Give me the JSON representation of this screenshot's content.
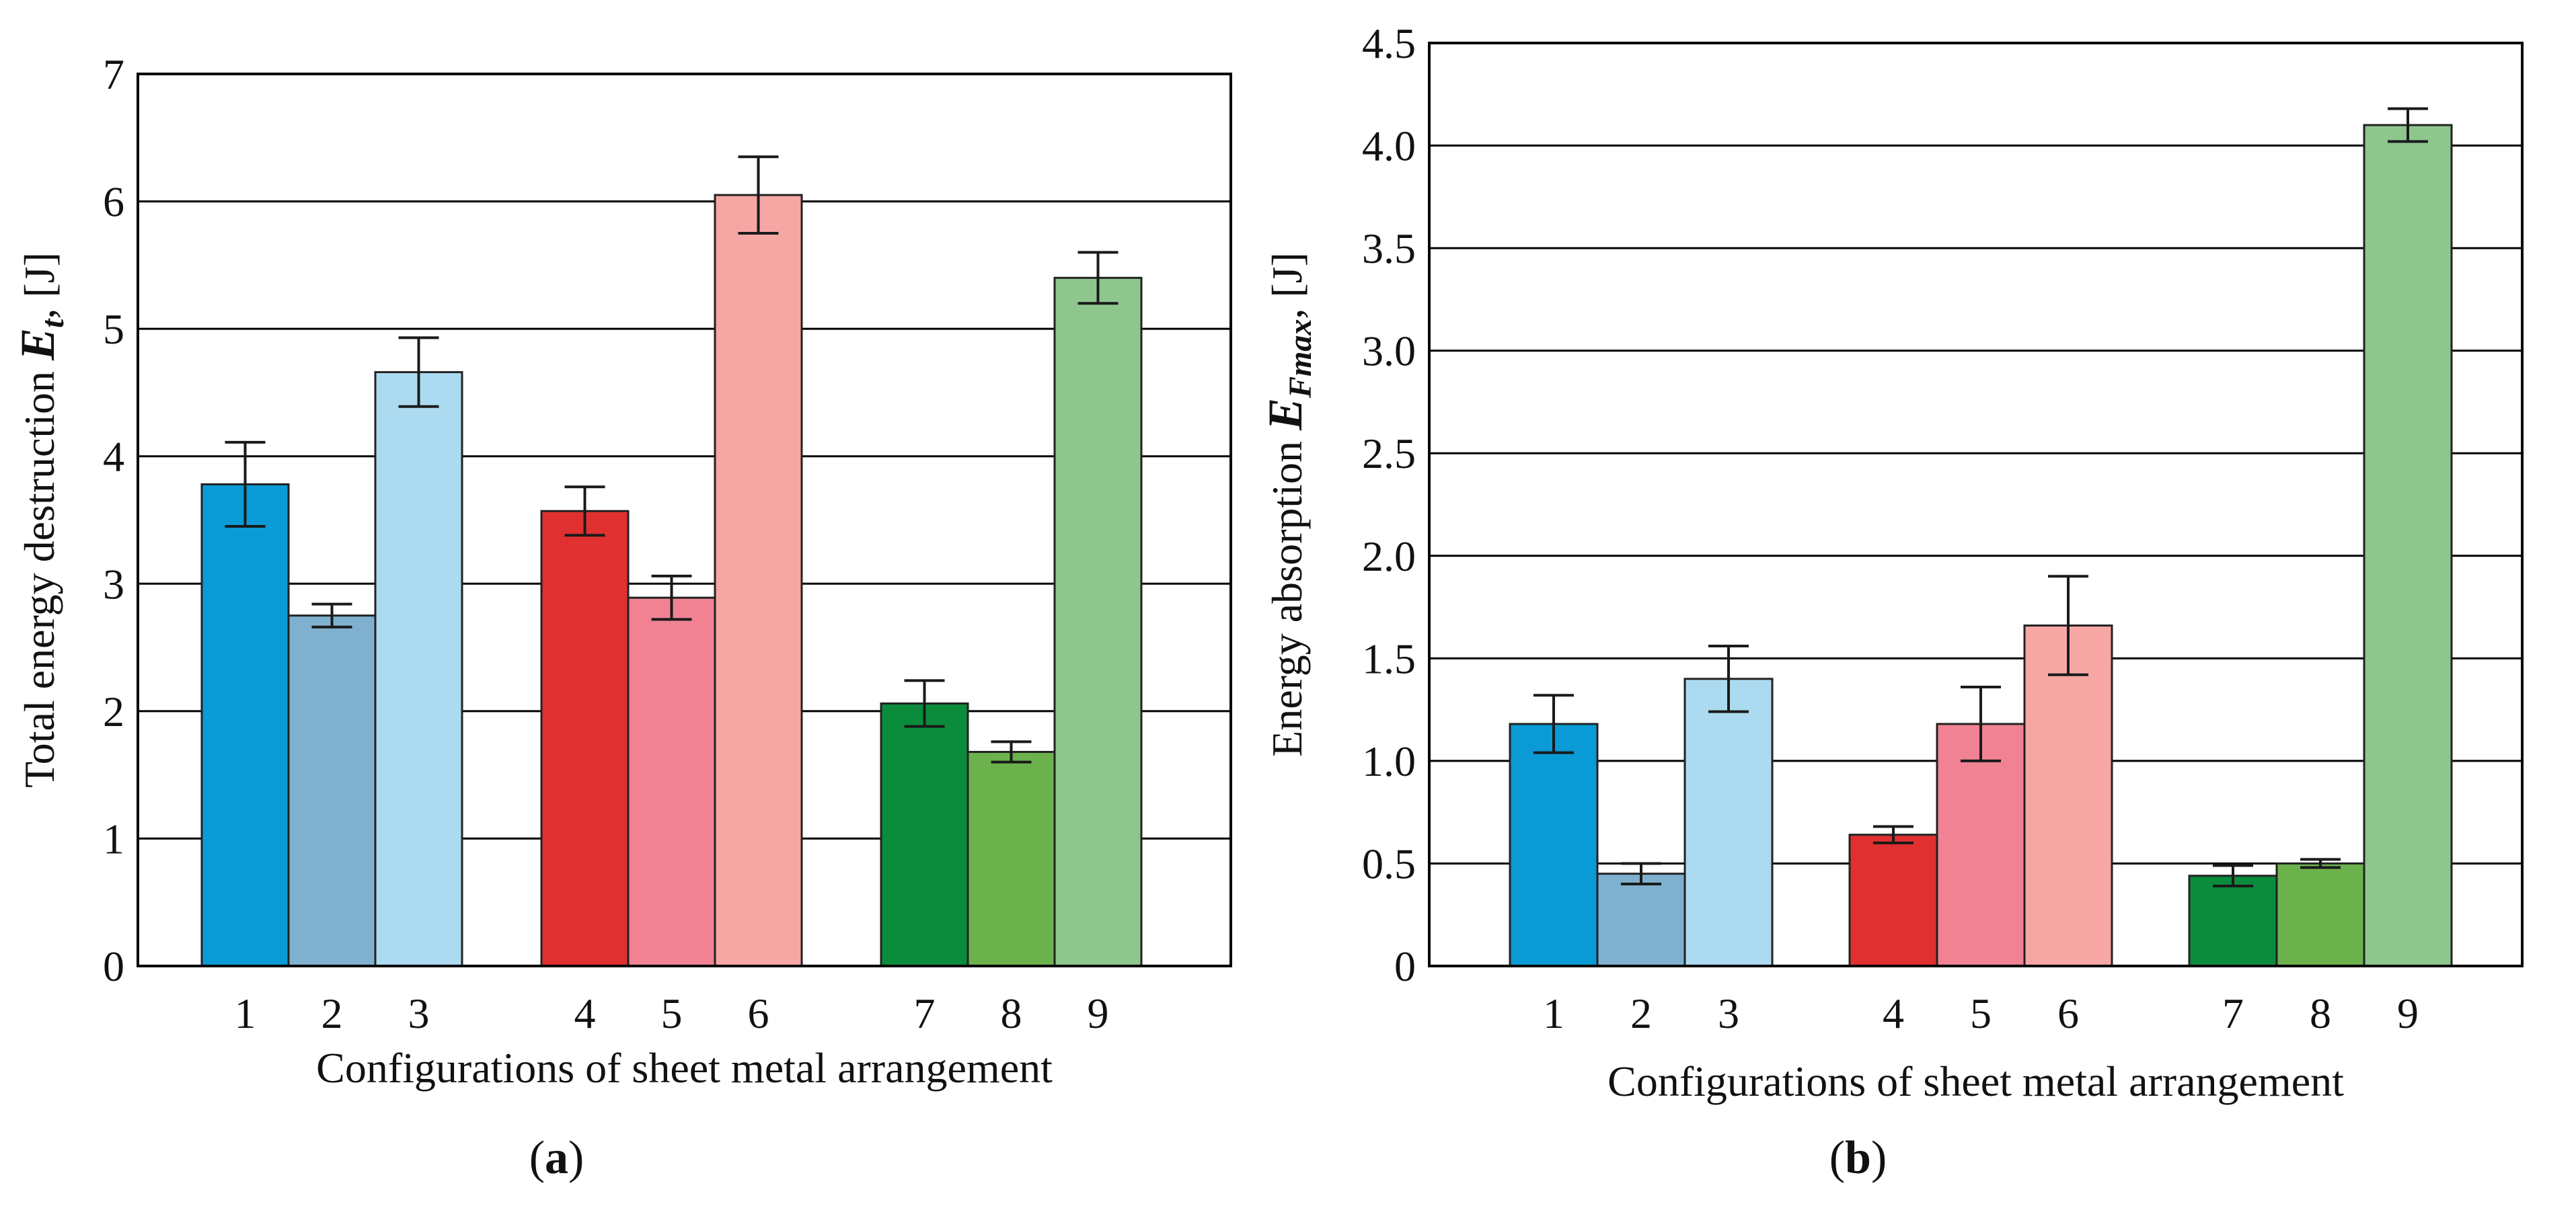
{
  "chart_data": [
    {
      "type": "bar",
      "panel_label": "a",
      "title": "",
      "ylabel": "Total energy destruction",
      "ylabel_symbol": "E",
      "ylabel_subscript": "t",
      "ylabel_unit": ", [J]",
      "xlabel": "Configurations of sheet metal arrangement",
      "ylim": [
        0,
        7
      ],
      "yticks": [
        "0",
        "1",
        "2",
        "3",
        "4",
        "5",
        "6",
        "7"
      ],
      "grid": true,
      "groups": [
        [
          "1",
          "2",
          "3"
        ],
        [
          "4",
          "5",
          "6"
        ],
        [
          "7",
          "8",
          "9"
        ]
      ],
      "categories": [
        "1",
        "2",
        "3",
        "4",
        "5",
        "6",
        "7",
        "8",
        "9"
      ],
      "values": [
        3.78,
        2.75,
        4.66,
        3.57,
        2.89,
        6.05,
        2.06,
        1.68,
        5.4
      ],
      "errors": [
        0.33,
        0.09,
        0.27,
        0.19,
        0.17,
        0.3,
        0.18,
        0.08,
        0.2
      ],
      "colors": [
        "#0a9ad6",
        "#7fb0cf",
        "#acdaf0",
        "#e03030",
        "#f08294",
        "#f6a7a4",
        "#0a8c3c",
        "#6cb24c",
        "#8fc68e"
      ]
    },
    {
      "type": "bar",
      "panel_label": "b",
      "title": "",
      "ylabel": "Energy absorption",
      "ylabel_symbol": "E",
      "ylabel_subscript": "Fmax",
      "ylabel_unit": ", [J]",
      "xlabel": "Configurations of sheet metal arrangement",
      "ylim": [
        0,
        4.5
      ],
      "yticks": [
        "0",
        "0.5",
        "1.0",
        "1.5",
        "2.0",
        "2.5",
        "3.0",
        "3.5",
        "4.0",
        "4.5"
      ],
      "grid": true,
      "groups": [
        [
          "1",
          "2",
          "3"
        ],
        [
          "4",
          "5",
          "6"
        ],
        [
          "7",
          "8",
          "9"
        ]
      ],
      "categories": [
        "1",
        "2",
        "3",
        "4",
        "5",
        "6",
        "7",
        "8",
        "9"
      ],
      "values": [
        1.18,
        0.45,
        1.4,
        0.64,
        1.18,
        1.66,
        0.44,
        0.5,
        4.1
      ],
      "errors": [
        0.14,
        0.05,
        0.16,
        0.04,
        0.18,
        0.24,
        0.05,
        0.02,
        0.08
      ],
      "colors": [
        "#0a9ad6",
        "#7fb0cf",
        "#acdaf0",
        "#e03030",
        "#f08294",
        "#f6a7a4",
        "#0a8c3c",
        "#6cb24c",
        "#8fc68e"
      ]
    }
  ]
}
